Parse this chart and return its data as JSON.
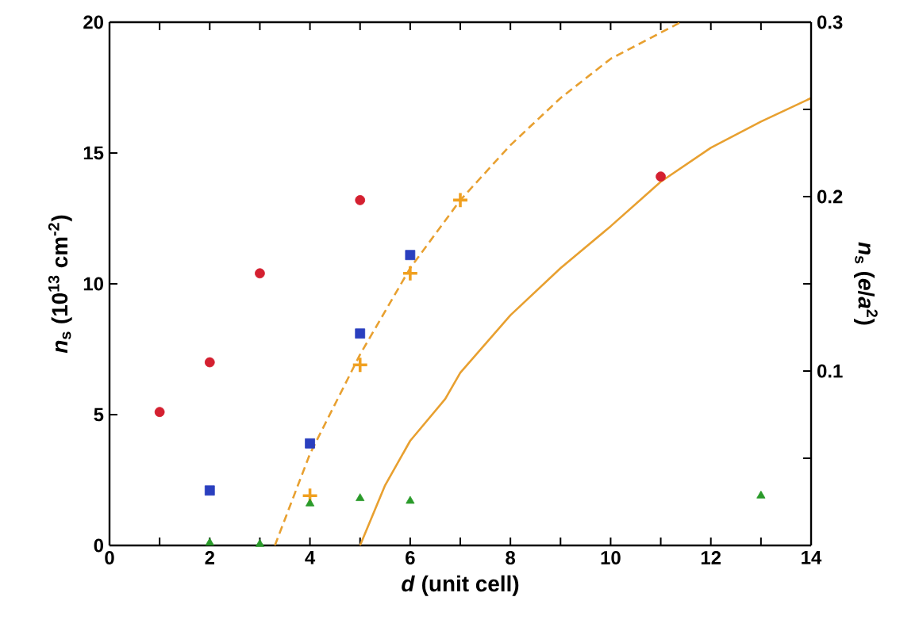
{
  "chart_data": {
    "type": "scatter",
    "xlabel": "*d* (unit cell)",
    "ylabel": "*n*$_{s}$ (10$^{13}$ cm$^{-2}$)",
    "y2label": "*n*$_{s}$ (*e*/*a*$^{2}$)",
    "xlim": [
      0,
      14
    ],
    "ylim": [
      0,
      20
    ],
    "y2lim": [
      0,
      0.3
    ],
    "xticks": [
      0,
      {
        "value": 1,
        "label": null
      },
      2,
      {
        "value": 3,
        "label": null
      },
      4,
      {
        "value": 5,
        "label": null
      },
      6,
      {
        "value": 7,
        "label": null
      },
      8,
      {
        "value": 9,
        "label": null
      },
      10,
      {
        "value": 11,
        "label": null
      },
      12,
      {
        "value": 13,
        "label": null
      },
      14
    ],
    "yticks": [
      0,
      5,
      10,
      15,
      20
    ],
    "y2ticks": [
      {
        "value": 0.05,
        "label": null
      },
      0.1,
      {
        "value": 0.15,
        "label": null
      },
      0.2,
      {
        "value": 0.25,
        "label": null
      },
      0.3
    ],
    "series": [
      {
        "type": "line",
        "color": "#e8a030",
        "line_style": "dashed",
        "marker": "none",
        "x": [
          3.3,
          4,
          5,
          6,
          7,
          8,
          9,
          10,
          11.4
        ],
        "values": [
          0,
          3.5,
          7.3,
          10.6,
          13.2,
          15.3,
          17.1,
          18.6,
          20
        ]
      },
      {
        "type": "line",
        "color": "#e8a030",
        "line_style": "solid",
        "marker": "none",
        "x": [
          5,
          5.5,
          6,
          6.7,
          7,
          8,
          9,
          10,
          11,
          12,
          13,
          14
        ],
        "values": [
          0,
          2.3,
          4.0,
          5.6,
          6.6,
          8.8,
          10.6,
          12.2,
          13.9,
          15.2,
          16.2,
          17.1
        ]
      },
      {
        "color": "#d42030",
        "marker": "circle",
        "x": [
          1,
          2,
          3,
          5,
          11
        ],
        "values": [
          5.1,
          7.0,
          10.4,
          13.2,
          14.1
        ]
      },
      {
        "color": "#2a3fbf",
        "marker": "square",
        "x": [
          2,
          4,
          5,
          6
        ],
        "values": [
          2.1,
          3.9,
          8.1,
          11.1
        ]
      },
      {
        "color": "#f0a020",
        "marker": "cross",
        "x": [
          4,
          5,
          6,
          7
        ],
        "values": [
          1.9,
          6.9,
          10.4,
          13.2
        ]
      },
      {
        "color": "#2a9a2a",
        "marker": "triangle",
        "x": [
          2,
          3,
          4,
          5,
          6,
          13
        ],
        "values": [
          0.1,
          0.05,
          1.6,
          1.8,
          1.7,
          1.9
        ]
      }
    ]
  }
}
